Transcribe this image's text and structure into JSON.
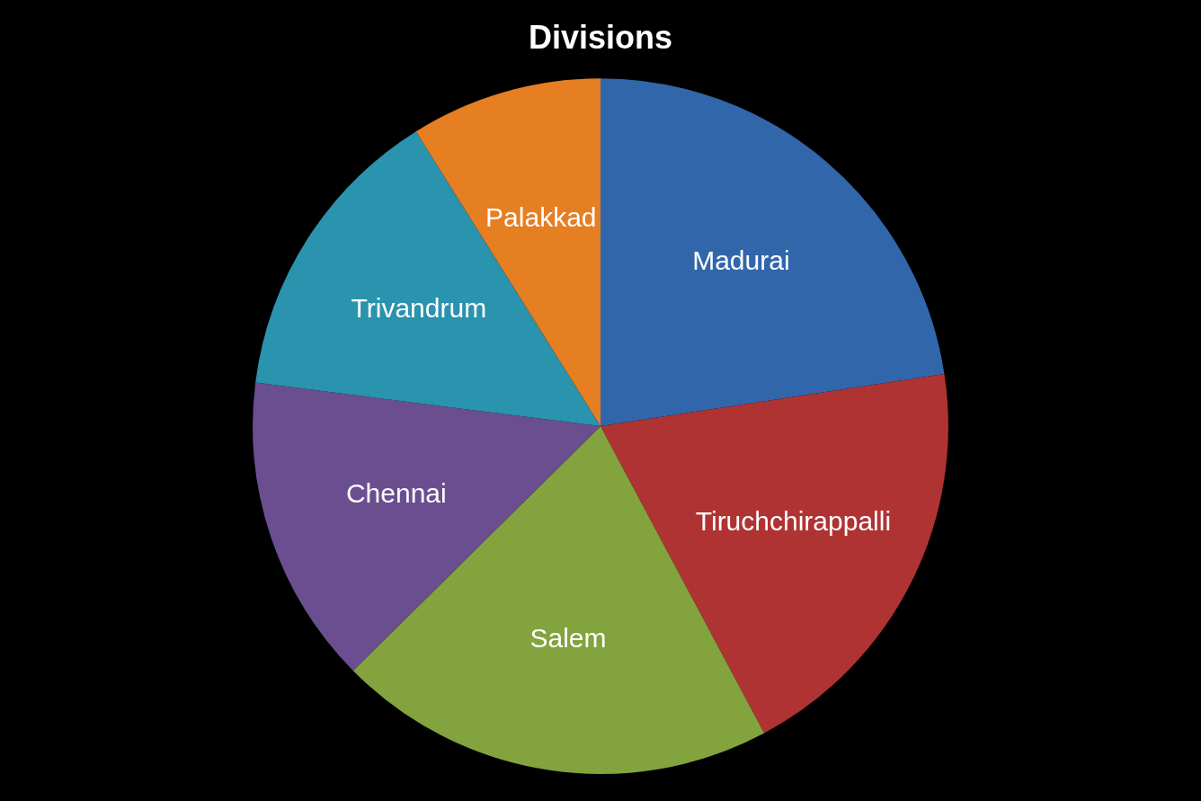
{
  "chart_data": {
    "type": "pie",
    "title": "Divisions",
    "categories": [
      "Madurai",
      "Tiruchchirappalli",
      "Salem",
      "Chennai",
      "Trivandrum",
      "Palakkad"
    ],
    "values": [
      22.6,
      19.6,
      20.4,
      14.4,
      14.1,
      8.9
    ],
    "colors": [
      "#3266ab",
      "#b03333",
      "#82a33d",
      "#6b4e8f",
      "#2a93ae",
      "#e67e22"
    ]
  }
}
